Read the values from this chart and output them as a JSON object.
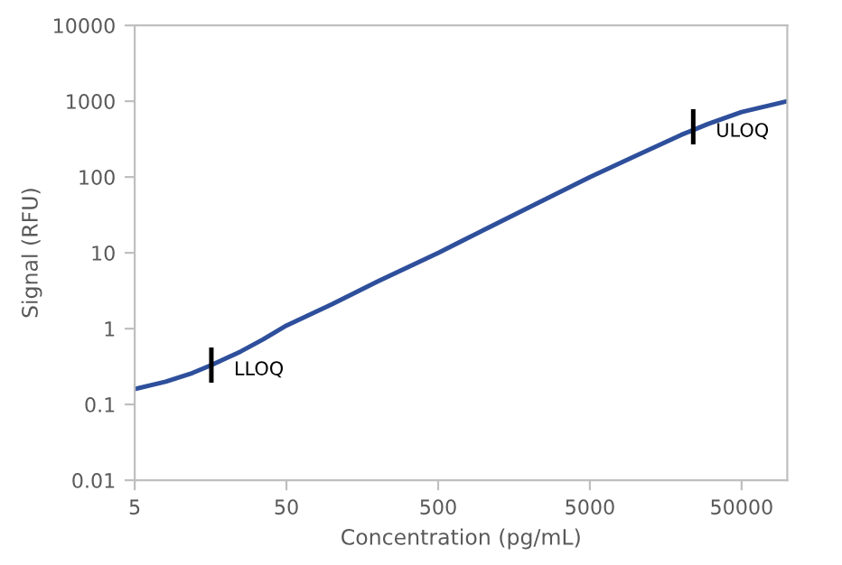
{
  "chart_data": {
    "type": "line",
    "xlabel": "Concentration (pg/mL)",
    "ylabel": "Signal (RFU)",
    "log": "xy",
    "x": [
      5,
      8,
      12,
      16,
      25,
      35,
      50,
      100,
      200,
      500,
      1000,
      2000,
      5000,
      10000,
      20000,
      30000,
      50000,
      100000
    ],
    "series": [
      {
        "color": "#2e4f9b",
        "values": [
          0.16,
          0.2,
          0.26,
          0.33,
          0.5,
          0.72,
          1.1,
          2.1,
          4.2,
          10,
          20,
          40,
          100,
          190,
          360,
          500,
          720,
          1000
        ]
      }
    ],
    "xlim": [
      5,
      100000
    ],
    "ylim": [
      0.01,
      10000
    ],
    "xticks": [
      5,
      50,
      500,
      5000,
      50000
    ],
    "yticks": [
      0.01,
      0.1,
      1,
      10,
      100,
      1000,
      10000
    ],
    "annotations": [
      {
        "text": "LLOQ",
        "x": 16,
        "y": 0.33
      },
      {
        "text": "ULOQ",
        "x": 24000,
        "y": 460
      }
    ],
    "grid": false,
    "legend": false
  }
}
